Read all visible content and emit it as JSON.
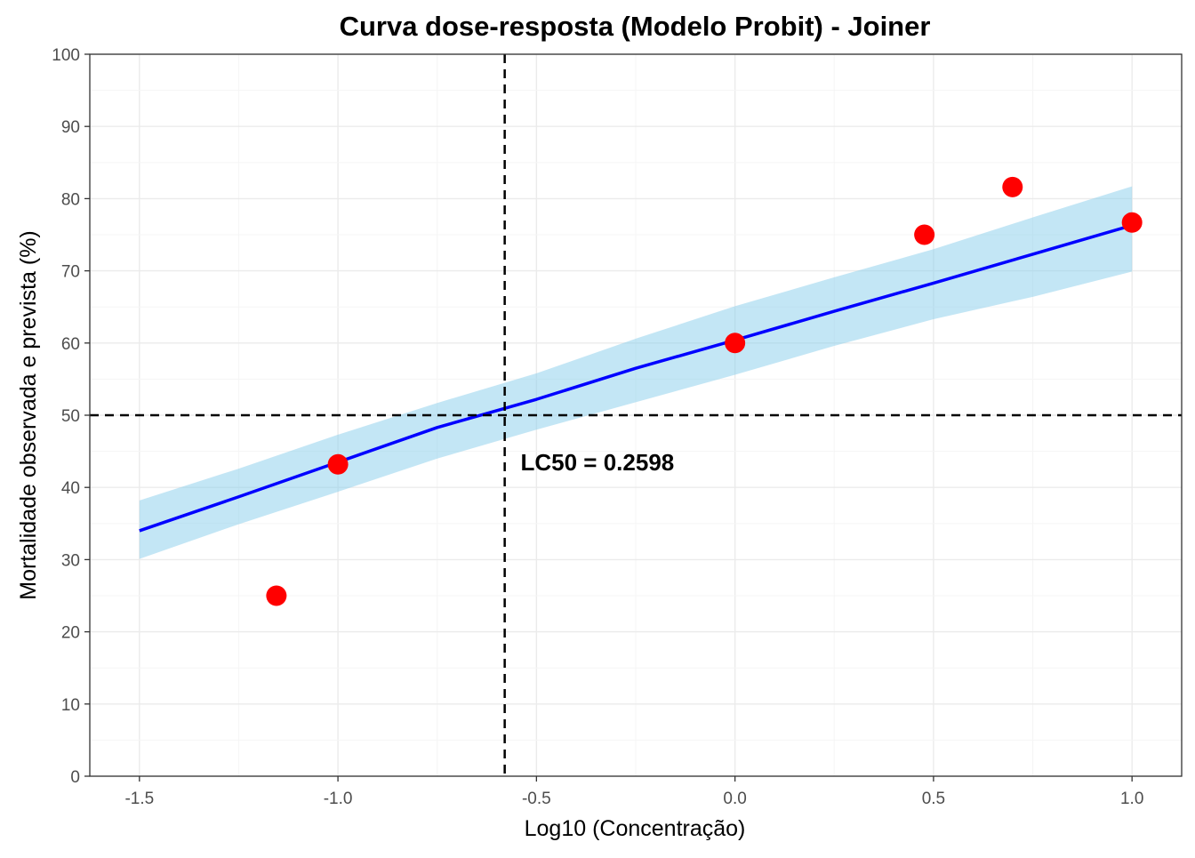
{
  "chart_data": {
    "type": "line",
    "title": "Curva dose-resposta (Modelo Probit) - Joiner",
    "xlabel": "Log10 (Concentração)",
    "ylabel": "Mortalidade observada e prevista (%)",
    "xlim": [
      -1.625,
      1.125
    ],
    "ylim": [
      0,
      100
    ],
    "x_ticks": [
      -1.5,
      -1.0,
      -0.5,
      0.0,
      0.5,
      1.0
    ],
    "x_tick_labels": [
      "-1.5",
      "-1.0",
      "-0.5",
      "0.0",
      "0.5",
      "1.0"
    ],
    "y_ticks": [
      0,
      10,
      20,
      30,
      40,
      50,
      60,
      70,
      80,
      90,
      100
    ],
    "y_tick_labels": [
      "0",
      "10",
      "20",
      "30",
      "40",
      "50",
      "60",
      "70",
      "80",
      "90",
      "100"
    ],
    "grid": true,
    "observed": {
      "color": "#ff0000",
      "x": [
        -1.155,
        -1.0,
        0.0,
        0.477,
        0.699,
        1.0
      ],
      "y": [
        25.0,
        43.2,
        60.0,
        75.0,
        81.6,
        76.7
      ]
    },
    "fitted": {
      "color": "#0000ff",
      "x": [
        -1.5,
        -1.25,
        -1.0,
        -0.75,
        -0.5,
        -0.25,
        0.0,
        0.25,
        0.5,
        0.75,
        1.0
      ],
      "y": [
        34.0,
        38.7,
        43.5,
        48.3,
        52.2,
        56.5,
        60.4,
        64.4,
        68.3,
        72.3,
        76.3
      ],
      "ci_lower": [
        30.1,
        34.9,
        39.4,
        44.0,
        48.0,
        51.8,
        55.6,
        59.6,
        63.3,
        66.4,
        69.9
      ],
      "ci_upper": [
        38.2,
        42.6,
        47.3,
        51.7,
        55.8,
        60.6,
        65.1,
        69.1,
        73.0,
        77.4,
        81.7
      ],
      "band_color": "#87ceeb"
    },
    "reference_lines": {
      "hline_y": 50,
      "vline_x": -0.58,
      "color": "#000000"
    },
    "annotation": {
      "text": "LC50 = 0.2598",
      "x": -0.54,
      "y": 43.5
    }
  }
}
